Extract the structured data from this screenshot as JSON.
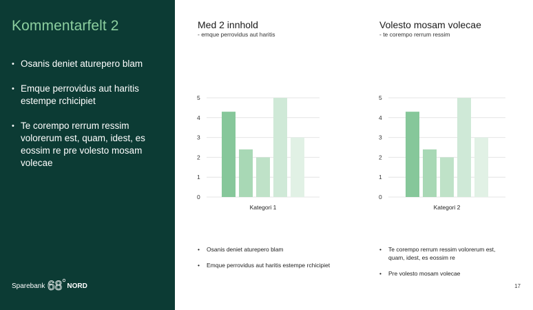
{
  "slide": {
    "title": "Kommentarfelt 2",
    "page_number": "17",
    "left_bullets": [
      "Osanis deniet aturepero blam",
      "Emque perrovidus aut haritis estempe rchicipiet",
      "Te corempo rerrum ressim volorerum est, quam, idest, es eossim re pre volesto mosam volecae"
    ]
  },
  "logo": {
    "bank": "Sparebank",
    "number": "68",
    "nord": "NORD"
  },
  "colors": {
    "panel": "#0c3b34",
    "title": "#8ccf9f",
    "bars": [
      "#86c79a",
      "#a8d8b5",
      "#bfe2c8",
      "#cfe9d7",
      "#e1f1e5"
    ]
  },
  "columns": [
    {
      "title": "Med 2 innhold",
      "subtitle": "- emque perrovidus aut haritis",
      "bullets": [
        "Osanis deniet aturepero blam",
        "Emque perrovidus aut haritis estempe rchicipiet"
      ]
    },
    {
      "title": "Volesto mosam volecae",
      "subtitle": "- te corempo rerrum ressim",
      "bullets": [
        "Te corempo rerrum ressim volorerum est, quam, idest, es eossim re",
        "Pre volesto mosam volecae"
      ]
    }
  ],
  "chart_data": [
    {
      "type": "bar",
      "categories": [
        "Kategori 1"
      ],
      "series": [
        {
          "values": [
            4.3
          ]
        },
        {
          "values": [
            2.4
          ]
        },
        {
          "values": [
            2.0
          ]
        },
        {
          "values": [
            5.0
          ]
        },
        {
          "values": [
            3.0
          ]
        }
      ],
      "yticks": [
        "0",
        "1",
        "2",
        "3",
        "4",
        "5"
      ],
      "ylim": [
        0,
        5
      ],
      "grid": true
    },
    {
      "type": "bar",
      "categories": [
        "Kategori 2"
      ],
      "series": [
        {
          "values": [
            4.3
          ]
        },
        {
          "values": [
            2.4
          ]
        },
        {
          "values": [
            2.0
          ]
        },
        {
          "values": [
            5.0
          ]
        },
        {
          "values": [
            3.0
          ]
        }
      ],
      "yticks": [
        "0",
        "1",
        "2",
        "3",
        "4",
        "5"
      ],
      "ylim": [
        0,
        5
      ],
      "grid": true
    }
  ]
}
